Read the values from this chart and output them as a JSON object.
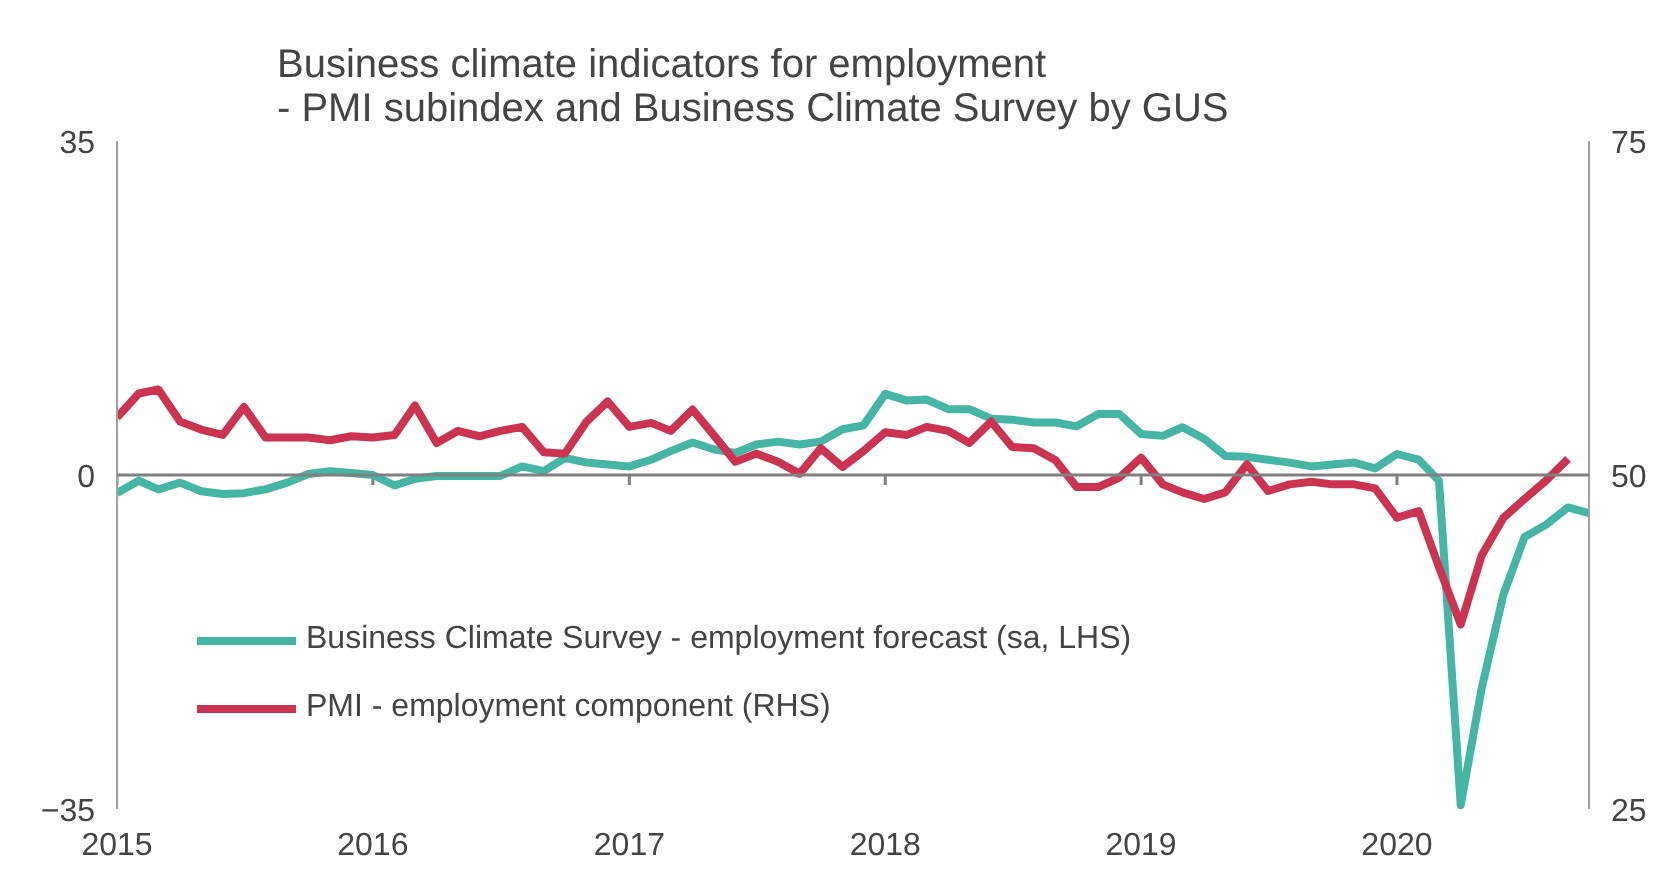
{
  "chart_data": {
    "type": "line",
    "title": "Business climate indicators for employment\n- PMI subindex and Business Climate Survey by GUS",
    "x": [
      "2015-01",
      "2015-02",
      "2015-03",
      "2015-04",
      "2015-05",
      "2015-06",
      "2015-07",
      "2015-08",
      "2015-09",
      "2015-10",
      "2015-11",
      "2015-12",
      "2016-01",
      "2016-02",
      "2016-03",
      "2016-04",
      "2016-05",
      "2016-06",
      "2016-07",
      "2016-08",
      "2016-09",
      "2016-10",
      "2016-11",
      "2016-12",
      "2017-01",
      "2017-02",
      "2017-03",
      "2017-04",
      "2017-05",
      "2017-06",
      "2017-07",
      "2017-08",
      "2017-09",
      "2017-10",
      "2017-11",
      "2017-12",
      "2018-01",
      "2018-02",
      "2018-03",
      "2018-04",
      "2018-05",
      "2018-06",
      "2018-07",
      "2018-08",
      "2018-09",
      "2018-10",
      "2018-11",
      "2018-12",
      "2019-01",
      "2019-02",
      "2019-03",
      "2019-04",
      "2019-05",
      "2019-06",
      "2019-07",
      "2019-08",
      "2019-09",
      "2019-10",
      "2019-11",
      "2019-12",
      "2020-01",
      "2020-02",
      "2020-03",
      "2020-04",
      "2020-05",
      "2020-06",
      "2020-07",
      "2020-08",
      "2020-09",
      "2020-10"
    ],
    "series": [
      {
        "name": "Business Climate Survey - employment forecast (sa, LHS)",
        "color": "#45b5a6",
        "values": [
          -1.9,
          -0.6,
          -1.5,
          -0.8,
          -1.7,
          -2.0,
          -1.9,
          -1.5,
          -0.8,
          0.1,
          0.4,
          0.2,
          0.0,
          -1.1,
          -0.4,
          -0.1,
          -0.1,
          -0.1,
          -0.1,
          0.9,
          0.4,
          1.8,
          1.3,
          1.1,
          0.9,
          1.6,
          2.5,
          3.4,
          2.7,
          2.3,
          3.2,
          3.5,
          3.2,
          3.5,
          4.8,
          5.2,
          8.5,
          7.8,
          7.9,
          6.9,
          6.9,
          5.9,
          5.8,
          5.5,
          5.5,
          5.1,
          6.4,
          6.4,
          4.3,
          4.1,
          5.0,
          3.8,
          2.0,
          1.9,
          1.6,
          1.3,
          0.9,
          1.1,
          1.3,
          0.7,
          2.2,
          1.6,
          -0.6,
          -34.6,
          -22.3,
          -12.5,
          -6.5,
          -5.2,
          -3.4,
          -4.0
        ]
      },
      {
        "name": "PMI - employment component (RHS)",
        "color": "#cc3350",
        "axis": "y2",
        "values": [
          54.3,
          56.1,
          56.4,
          54.0,
          53.4,
          53.0,
          55.1,
          52.8,
          52.8,
          52.8,
          52.6,
          52.9,
          52.8,
          53.0,
          55.2,
          52.4,
          53.3,
          52.9,
          53.3,
          53.6,
          51.7,
          51.6,
          54.0,
          55.5,
          53.6,
          53.9,
          53.3,
          54.9,
          53.0,
          51.0,
          51.6,
          51.0,
          50.1,
          52.0,
          50.6,
          51.8,
          53.2,
          53.0,
          53.6,
          53.3,
          52.4,
          54.0,
          52.1,
          52.0,
          51.1,
          49.1,
          49.1,
          49.8,
          51.3,
          49.3,
          48.7,
          48.2,
          48.7,
          50.8,
          48.8,
          49.3,
          49.5,
          49.3,
          49.3,
          49.0,
          46.8,
          47.3,
          43.1,
          38.8,
          44.0,
          46.8,
          48.2,
          49.6,
          51.2,
          null
        ]
      }
    ],
    "xlim": [
      "2015-01",
      "2020-10"
    ],
    "xticks": [
      "2015",
      "2016",
      "2017",
      "2018",
      "2019",
      "2020"
    ],
    "ylim": [
      -35,
      35
    ],
    "yticks": [
      -35,
      0,
      35
    ],
    "y2lim": [
      25,
      75
    ],
    "y2ticks": [
      25,
      50,
      75
    ],
    "ref_lines": [
      {
        "axis": "y",
        "value": 0,
        "color": "#808080"
      }
    ],
    "grid": false,
    "legend": "bottom left"
  }
}
